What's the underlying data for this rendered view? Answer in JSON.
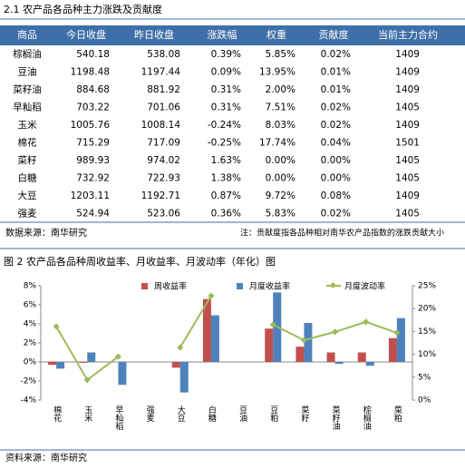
{
  "table": {
    "title": "2.1 农产品各品种主力涨跌及贡献度",
    "header": [
      "商品",
      "今日收盘",
      "昨日收盘",
      "涨跌幅",
      "权重",
      "贡献度",
      "当前主力合约"
    ],
    "rows": [
      [
        "棕榈油",
        "540.18",
        "538.08",
        "0.39%",
        "5.85%",
        "0.02%",
        "1409"
      ],
      [
        "豆油",
        "1198.48",
        "1197.44",
        "0.09%",
        "13.95%",
        "0.01%",
        "1409"
      ],
      [
        "菜籽油",
        "884.68",
        "881.92",
        "0.31%",
        "2.00%",
        "0.01%",
        "1409"
      ],
      [
        "早籼稻",
        "703.22",
        "701.06",
        "0.31%",
        "7.51%",
        "0.02%",
        "1405"
      ],
      [
        "玉米",
        "1005.76",
        "1008.14",
        "-0.24%",
        "8.03%",
        "0.02%",
        "1409"
      ],
      [
        "棉花",
        "715.29",
        "717.09",
        "-0.25%",
        "17.74%",
        "0.04%",
        "1501"
      ],
      [
        "菜籽",
        "989.93",
        "974.02",
        "1.63%",
        "0.00%",
        "0.00%",
        "1405"
      ],
      [
        "白糖",
        "732.92",
        "722.93",
        "1.38%",
        "0.00%",
        "0.00%",
        "1405"
      ],
      [
        "大豆",
        "1203.11",
        "1192.71",
        "0.87%",
        "9.72%",
        "0.08%",
        "1409"
      ],
      [
        "强麦",
        "524.94",
        "523.06",
        "0.36%",
        "5.83%",
        "0.02%",
        "1405"
      ]
    ],
    "source": "数据来源：南华研究",
    "note": "注：贡献度指各品种相对南华农产品指数的涨跌贡献大小"
  },
  "chart_data": {
    "type": "bar",
    "title": "图 2 农产品各品种周收益率、月收益率、月波动率（年化）图",
    "categories": [
      "棉花",
      "玉米",
      "早籼稻",
      "强麦",
      "大豆",
      "白糖",
      "豆油",
      "豆粕",
      "菜籽",
      "菜籽油",
      "棕榈油",
      "菜粕"
    ],
    "series": [
      {
        "name": "周收益率",
        "color": "#c0504d",
        "type": "bar",
        "values": [
          -0.3,
          -0.1,
          0,
          0,
          -0.6,
          6.6,
          0,
          3.5,
          1.6,
          1.0,
          1.0,
          2.5
        ]
      },
      {
        "name": "月度收益率",
        "color": "#4f81bd",
        "type": "bar",
        "values": [
          -0.7,
          1.0,
          -2.4,
          0,
          -3.2,
          4.9,
          0,
          7.3,
          4.1,
          -0.2,
          -0.4,
          4.6
        ]
      },
      {
        "name": "月度波动率",
        "color": "#9bbb59",
        "type": "line",
        "axis": "y2",
        "values": [
          16.1,
          4.4,
          9.5,
          null,
          11.5,
          22.8,
          null,
          16.5,
          13.1,
          14.9,
          17.1,
          14.7
        ]
      }
    ],
    "ylim": [
      -4,
      8
    ],
    "yticks": [
      {
        "value": -4,
        "label": "-4%"
      },
      {
        "value": -2,
        "label": "-2%"
      },
      {
        "value": 0,
        "label": "0%"
      },
      {
        "value": 2,
        "label": "2%"
      },
      {
        "value": 4,
        "label": "4%"
      },
      {
        "value": 6,
        "label": "6%"
      },
      {
        "value": 8,
        "label": "8%"
      }
    ],
    "y2lim": [
      0,
      25
    ],
    "y2ticks": [
      {
        "value": 0,
        "label": "0%"
      },
      {
        "value": 5,
        "label": "5%"
      },
      {
        "value": 10,
        "label": "10%"
      },
      {
        "value": 15,
        "label": "15%"
      },
      {
        "value": 20,
        "label": "20%"
      },
      {
        "value": 25,
        "label": "25%"
      }
    ],
    "grid": false,
    "legend": "top",
    "source": "资料来源：南华研究"
  }
}
